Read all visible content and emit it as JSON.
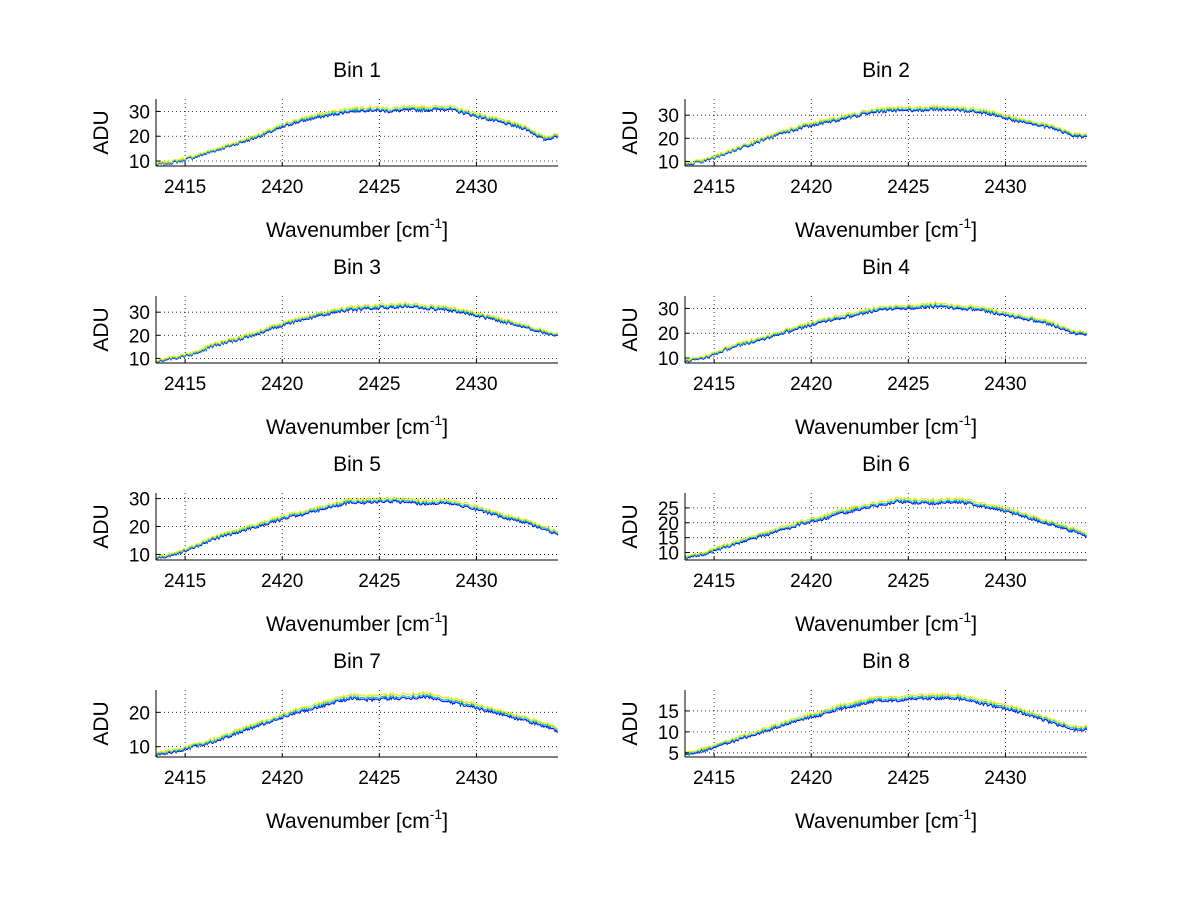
{
  "chart_data": [
    {
      "type": "line",
      "title": "Bin 1",
      "xlabel": "Wavenumber [cm",
      "xlabel_sup": "-1",
      "xlabel_close": "]",
      "ylabel": "ADU",
      "xlim": [
        2413.5,
        2434.2
      ],
      "ylim": [
        8,
        35
      ],
      "xticks": [
        2415,
        2420,
        2425,
        2430
      ],
      "yticks": [
        10,
        20,
        30
      ],
      "grid": true,
      "x": [
        2413.5,
        2414.5,
        2415.5,
        2416.5,
        2417.5,
        2418.5,
        2419.5,
        2420.5,
        2421.5,
        2422.5,
        2423.5,
        2424.5,
        2425.5,
        2426.5,
        2427.5,
        2428.5,
        2429.5,
        2430.5,
        2431.5,
        2432.5,
        2433.5,
        2434.2
      ],
      "series": [
        {
          "color": "#0000ff",
          "values": [
            8.5,
            9.5,
            11.5,
            14,
            16.5,
            19,
            22,
            25,
            27,
            28.5,
            30,
            30.5,
            30,
            30.5,
            30.5,
            31,
            29,
            27,
            25,
            23,
            18.5,
            20
          ]
        },
        {
          "color": "#00bfbf",
          "values": [
            8.7,
            9.8,
            11.8,
            14.3,
            16.8,
            19.4,
            22.4,
            25.5,
            27.5,
            29,
            30.5,
            31,
            30.5,
            31,
            31,
            31.5,
            29.5,
            27.5,
            25.5,
            23.5,
            19,
            20.5
          ]
        },
        {
          "color": "#e6e600",
          "values": [
            9,
            10.2,
            12.2,
            14.8,
            17.2,
            19.9,
            22.9,
            26.1,
            28.2,
            29.8,
            31.3,
            31.8,
            31.3,
            31.8,
            31.8,
            32.3,
            30.3,
            28.2,
            26.2,
            24.1,
            19.6,
            21
          ]
        }
      ]
    },
    {
      "type": "line",
      "title": "Bin 2",
      "xlabel": "Wavenumber [cm",
      "xlabel_sup": "-1",
      "xlabel_close": "]",
      "ylabel": "ADU",
      "xlim": [
        2413.5,
        2434.2
      ],
      "ylim": [
        8,
        37
      ],
      "xticks": [
        2415,
        2420,
        2425,
        2430
      ],
      "yticks": [
        10,
        20,
        30
      ],
      "grid": true,
      "x": [
        2413.5,
        2414.5,
        2415.5,
        2416.5,
        2417.5,
        2418.5,
        2419.5,
        2420.5,
        2421.5,
        2422.5,
        2423.5,
        2424.5,
        2425.5,
        2426.5,
        2427.5,
        2428.5,
        2429.5,
        2430.5,
        2431.5,
        2432.5,
        2433.5,
        2434.2
      ],
      "series": [
        {
          "color": "#0000ff",
          "values": [
            8.5,
            10,
            13,
            16,
            19,
            22,
            24.5,
            26.5,
            28,
            30,
            31.5,
            32,
            32,
            32.5,
            32,
            31.5,
            30,
            27.5,
            26,
            24,
            21,
            20.5
          ]
        },
        {
          "color": "#00bfbf",
          "values": [
            8.8,
            10.3,
            13.3,
            16.4,
            19.4,
            22.4,
            25,
            27,
            28.5,
            30.5,
            32,
            32.5,
            32.5,
            33,
            32.5,
            32,
            30.5,
            28,
            26.5,
            24.5,
            21.5,
            21
          ]
        },
        {
          "color": "#e6e600",
          "values": [
            9.1,
            10.7,
            13.8,
            16.9,
            19.9,
            23,
            25.6,
            27.6,
            29.1,
            31.2,
            32.8,
            33.3,
            33.3,
            33.8,
            33.3,
            32.8,
            31.2,
            28.7,
            27.1,
            25.1,
            22,
            21.6
          ]
        }
      ]
    },
    {
      "type": "line",
      "title": "Bin 3",
      "xlabel": "Wavenumber [cm",
      "xlabel_sup": "-1",
      "xlabel_close": "]",
      "ylabel": "ADU",
      "xlim": [
        2413.5,
        2434.2
      ],
      "ylim": [
        8,
        37
      ],
      "xticks": [
        2415,
        2420,
        2425,
        2430
      ],
      "yticks": [
        10,
        20,
        30
      ],
      "grid": true,
      "x": [
        2413.5,
        2414.5,
        2415.5,
        2416.5,
        2417.5,
        2418.5,
        2419.5,
        2420.5,
        2421.5,
        2422.5,
        2423.5,
        2424.5,
        2425.5,
        2426.5,
        2427.5,
        2428.5,
        2429.5,
        2430.5,
        2431.5,
        2432.5,
        2433.5,
        2434.2
      ],
      "series": [
        {
          "color": "#0000ff",
          "values": [
            8.5,
            10,
            12,
            15.5,
            17.5,
            20,
            23,
            25.5,
            27.5,
            29.5,
            31,
            31.5,
            32,
            32.5,
            31.5,
            31,
            29.5,
            27.5,
            25.5,
            23.5,
            21,
            20
          ]
        },
        {
          "color": "#00bfbf",
          "values": [
            8.8,
            10.3,
            12.3,
            15.9,
            17.9,
            20.4,
            23.5,
            26,
            28,
            30,
            31.5,
            32,
            32.5,
            33,
            32,
            31.5,
            30,
            28,
            26,
            24,
            21.5,
            20.4
          ]
        },
        {
          "color": "#e6e600",
          "values": [
            9.1,
            10.7,
            12.8,
            16.4,
            18.4,
            21,
            24.1,
            26.6,
            28.7,
            30.7,
            32.3,
            32.8,
            33.3,
            33.8,
            32.8,
            32.3,
            30.7,
            28.7,
            26.6,
            24.6,
            22,
            20.9
          ]
        }
      ]
    },
    {
      "type": "line",
      "title": "Bin 4",
      "xlabel": "Wavenumber [cm",
      "xlabel_sup": "-1",
      "xlabel_close": "]",
      "ylabel": "ADU",
      "xlim": [
        2413.5,
        2434.2
      ],
      "ylim": [
        8,
        35
      ],
      "xticks": [
        2415,
        2420,
        2425,
        2430
      ],
      "yticks": [
        10,
        20,
        30
      ],
      "grid": true,
      "x": [
        2413.5,
        2414.5,
        2415.5,
        2416.5,
        2417.5,
        2418.5,
        2419.5,
        2420.5,
        2421.5,
        2422.5,
        2423.5,
        2424.5,
        2425.5,
        2426.5,
        2427.5,
        2428.5,
        2429.5,
        2430.5,
        2431.5,
        2432.5,
        2433.5,
        2434.2
      ],
      "series": [
        {
          "color": "#0000ff",
          "values": [
            8.5,
            10,
            13,
            15.5,
            17.5,
            20,
            22,
            24.5,
            26,
            27.5,
            29.5,
            30,
            30,
            31,
            30,
            29.5,
            28,
            26.5,
            25,
            23,
            20,
            19.5
          ]
        },
        {
          "color": "#00bfbf",
          "values": [
            8.8,
            10.3,
            13.3,
            15.9,
            17.9,
            20.4,
            22.5,
            25,
            26.5,
            28,
            30,
            30.5,
            30.5,
            31.5,
            30.5,
            30,
            28.5,
            27,
            25.5,
            23.5,
            20.5,
            20
          ]
        },
        {
          "color": "#e6e600",
          "values": [
            9.1,
            10.7,
            13.8,
            16.4,
            18.4,
            21,
            23.1,
            25.6,
            27.2,
            28.7,
            30.7,
            31.2,
            31.2,
            32.3,
            31.2,
            30.7,
            29.2,
            27.6,
            26.1,
            24.1,
            21,
            20.5
          ]
        }
      ]
    },
    {
      "type": "line",
      "title": "Bin 5",
      "xlabel": "Wavenumber [cm",
      "xlabel_sup": "-1",
      "xlabel_close": "]",
      "ylabel": "ADU",
      "xlim": [
        2413.5,
        2434.2
      ],
      "ylim": [
        8,
        32
      ],
      "xticks": [
        2415,
        2420,
        2425,
        2430
      ],
      "yticks": [
        10,
        20,
        30
      ],
      "grid": true,
      "x": [
        2413.5,
        2414.5,
        2415.5,
        2416.5,
        2417.5,
        2418.5,
        2419.5,
        2420.5,
        2421.5,
        2422.5,
        2423.5,
        2424.5,
        2425.5,
        2426.5,
        2427.5,
        2428.5,
        2429.5,
        2430.5,
        2431.5,
        2432.5,
        2433.5,
        2434.2
      ],
      "series": [
        {
          "color": "#0000ff",
          "values": [
            8.5,
            10,
            12.5,
            15.5,
            17.5,
            19.5,
            21.5,
            23.5,
            25,
            27,
            28.5,
            28.5,
            29,
            28.5,
            28,
            28.5,
            27,
            25,
            23,
            21.5,
            19,
            17
          ]
        },
        {
          "color": "#00bfbf",
          "values": [
            8.8,
            10.3,
            12.8,
            15.9,
            17.9,
            19.9,
            22,
            24,
            25.5,
            27.5,
            29,
            29,
            29.5,
            29,
            28.5,
            29,
            27.5,
            25.5,
            23.5,
            22,
            19.5,
            17.5
          ]
        },
        {
          "color": "#e6e600",
          "values": [
            9.1,
            10.7,
            13.3,
            16.4,
            18.4,
            20.5,
            22.6,
            24.6,
            26.1,
            28.2,
            29.7,
            29.7,
            30.2,
            29.7,
            29.2,
            29.7,
            28.2,
            26.1,
            24.1,
            22.5,
            20,
            18
          ]
        }
      ]
    },
    {
      "type": "line",
      "title": "Bin 6",
      "xlabel": "Wavenumber [cm",
      "xlabel_sup": "-1",
      "xlabel_close": "]",
      "ylabel": "ADU",
      "xlim": [
        2413.5,
        2434.2
      ],
      "ylim": [
        7.5,
        30
      ],
      "xticks": [
        2415,
        2420,
        2425,
        2430
      ],
      "yticks": [
        10,
        15,
        20,
        25
      ],
      "grid": true,
      "x": [
        2413.5,
        2414.5,
        2415.5,
        2416.5,
        2417.5,
        2418.5,
        2419.5,
        2420.5,
        2421.5,
        2422.5,
        2423.5,
        2424.5,
        2425.5,
        2426.5,
        2427.5,
        2428.5,
        2429.5,
        2430.5,
        2431.5,
        2432.5,
        2433.5,
        2434.2
      ],
      "series": [
        {
          "color": "#0000ff",
          "values": [
            8,
            9.5,
            11.5,
            13.5,
            15.5,
            17.5,
            19.5,
            21,
            23,
            24.5,
            26,
            27,
            26.5,
            26.5,
            27,
            26,
            24.5,
            23,
            21,
            19,
            17,
            15.5
          ]
        },
        {
          "color": "#00bfbf",
          "values": [
            8.3,
            9.8,
            11.8,
            13.9,
            15.9,
            17.9,
            19.9,
            21.5,
            23.5,
            25,
            26.5,
            27.5,
            27,
            27,
            27.5,
            26.5,
            25,
            23.5,
            21.5,
            19.5,
            17.5,
            16
          ]
        },
        {
          "color": "#e6e600",
          "values": [
            8.6,
            10.2,
            12.3,
            14.4,
            16.4,
            18.5,
            20.5,
            22.1,
            24.1,
            25.6,
            27.2,
            28.2,
            27.7,
            27.7,
            28.2,
            27.2,
            25.6,
            24.1,
            22.1,
            20,
            18,
            16.5
          ]
        }
      ]
    },
    {
      "type": "line",
      "title": "Bin 7",
      "xlabel": "Wavenumber [cm",
      "xlabel_sup": "-1",
      "xlabel_close": "]",
      "ylabel": "ADU",
      "xlim": [
        2413.5,
        2434.2
      ],
      "ylim": [
        7,
        26.5
      ],
      "xticks": [
        2415,
        2420,
        2425,
        2430
      ],
      "yticks": [
        10,
        20
      ],
      "grid": true,
      "x": [
        2413.5,
        2414.5,
        2415.5,
        2416.5,
        2417.5,
        2418.5,
        2419.5,
        2420.5,
        2421.5,
        2422.5,
        2423.5,
        2424.5,
        2425.5,
        2426.5,
        2427.5,
        2428.5,
        2429.5,
        2430.5,
        2431.5,
        2432.5,
        2433.5,
        2434.2
      ],
      "series": [
        {
          "color": "#0000ff",
          "values": [
            7.5,
            8.5,
            10,
            11.5,
            13.5,
            15.5,
            17.5,
            19.5,
            21,
            22.5,
            24,
            23.5,
            24,
            24,
            24.5,
            23,
            22,
            20.5,
            19,
            17.5,
            16,
            14.5
          ]
        },
        {
          "color": "#00bfbf",
          "values": [
            7.8,
            8.8,
            10.3,
            11.8,
            13.9,
            15.9,
            17.9,
            20,
            21.5,
            23,
            24.5,
            24,
            24.5,
            24.5,
            25,
            23.5,
            22.5,
            21,
            19.5,
            18,
            16.5,
            15
          ]
        },
        {
          "color": "#e6e600",
          "values": [
            8.1,
            9.2,
            10.7,
            12.3,
            14.4,
            16.4,
            18.4,
            20.5,
            22.1,
            23.6,
            25.2,
            24.7,
            25.2,
            25.2,
            25.7,
            24.2,
            23.1,
            21.6,
            20,
            18.5,
            17,
            15.5
          ]
        }
      ]
    },
    {
      "type": "line",
      "title": "Bin 8",
      "xlabel": "Wavenumber [cm",
      "xlabel_sup": "-1",
      "xlabel_close": "]",
      "ylabel": "ADU",
      "xlim": [
        2413.5,
        2434.2
      ],
      "ylim": [
        4,
        20
      ],
      "xticks": [
        2415,
        2420,
        2425,
        2430
      ],
      "yticks": [
        5,
        10,
        15
      ],
      "grid": true,
      "x": [
        2413.5,
        2414.5,
        2415.5,
        2416.5,
        2417.5,
        2418.5,
        2419.5,
        2420.5,
        2421.5,
        2422.5,
        2423.5,
        2424.5,
        2425.5,
        2426.5,
        2427.5,
        2428.5,
        2429.5,
        2430.5,
        2431.5,
        2432.5,
        2433.5,
        2434.2
      ],
      "series": [
        {
          "color": "#0000ff",
          "values": [
            4.5,
            5.5,
            7,
            8.5,
            10,
            11.5,
            13,
            14,
            15.5,
            16.5,
            17.5,
            17.5,
            18,
            18,
            18,
            17,
            16,
            15,
            13.5,
            12,
            10.5,
            10.5
          ]
        },
        {
          "color": "#00bfbf",
          "values": [
            4.7,
            5.8,
            7.3,
            8.8,
            10.3,
            11.8,
            13.3,
            14.4,
            15.9,
            16.9,
            17.9,
            17.9,
            18.4,
            18.4,
            18.4,
            17.4,
            16.4,
            15.4,
            13.9,
            12.4,
            10.9,
            10.9
          ]
        },
        {
          "color": "#e6e600",
          "values": [
            5,
            6.1,
            7.6,
            9.2,
            10.7,
            12.2,
            13.7,
            14.8,
            16.4,
            17.4,
            18.4,
            18.4,
            18.9,
            18.9,
            18.9,
            17.9,
            16.9,
            15.9,
            14.3,
            12.8,
            11.3,
            11.3
          ]
        }
      ]
    }
  ]
}
